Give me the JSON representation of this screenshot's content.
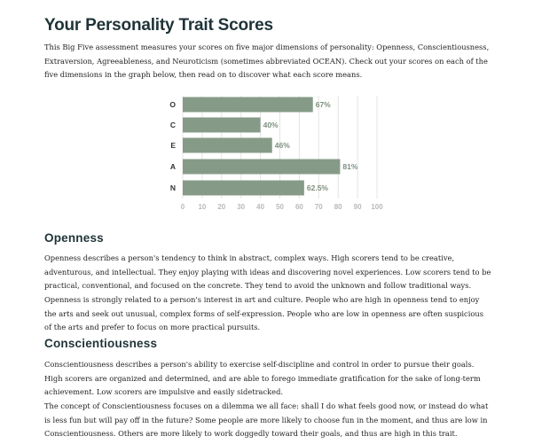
{
  "page": {
    "title": "Your Personality Trait Scores",
    "intro": "This Big Five assessment measures your scores on five major dimensions of personality: Openness, Conscientiousness, Extraversion, Agreeableness, and Neuroticism (sometimes abbreviated OCEAN). Check out your scores on each of the five dimensions in the graph below, then read on to discover what each score means."
  },
  "chart_data": {
    "type": "bar",
    "orientation": "horizontal",
    "categories": [
      "O",
      "C",
      "E",
      "A",
      "N"
    ],
    "values": [
      67,
      40,
      46,
      81,
      62.5
    ],
    "value_labels": [
      "67%",
      "40%",
      "46%",
      "81%",
      "62.5%"
    ],
    "xlim": [
      0,
      100
    ],
    "xticks": [
      "0",
      "10",
      "20",
      "30",
      "40",
      "50",
      "60",
      "70",
      "80",
      "90",
      "100"
    ],
    "grid": true,
    "bar_color": "#869b87",
    "label_color": "#7d8f7e"
  },
  "sections": [
    {
      "heading": "Openness",
      "paragraphs": [
        "Openness describes a person's tendency to think in abstract, complex ways. High scorers tend to be creative, adventurous, and intellectual. They enjoy playing with ideas and discovering novel experiences. Low scorers tend to be practical, conventional, and focused on the concrete. They tend to avoid the unknown and follow traditional ways.",
        "Openness is strongly related to a person's interest in art and culture. People who are high in openness tend to enjoy the arts and seek out unusual, complex forms of self-expression. People who are low in openness are often suspicious of the arts and prefer to focus on more practical pursuits."
      ]
    },
    {
      "heading": "Conscientiousness",
      "paragraphs": [
        "Conscientiousness describes a person's ability to exercise self-discipline and control in order to pursue their goals. High scorers are organized and determined, and are able to forego immediate gratification for the sake of long-term achievement. Low scorers are impulsive and easily sidetracked.",
        "The concept of Conscientiousness focuses on a dilemma we all face: shall I do what feels good now, or instead do what is less fun but will pay off in the future? Some people are more likely to choose fun in the moment, and thus are low in Conscientiousness. Others are more likely to work doggedly toward their goals, and thus are high in this trait."
      ]
    }
  ]
}
